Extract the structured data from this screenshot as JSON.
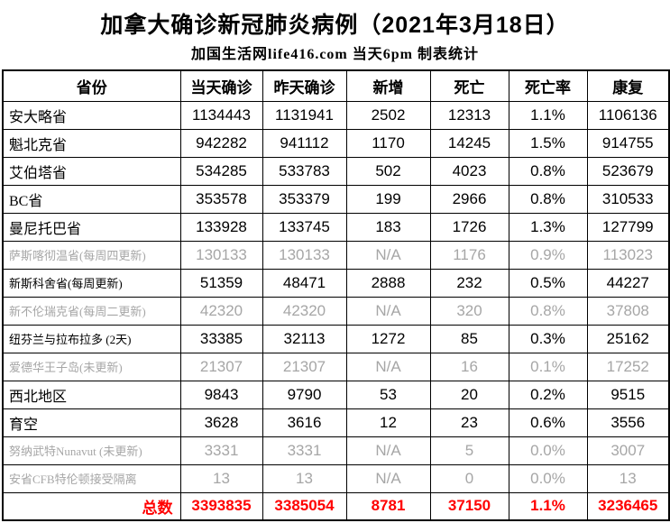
{
  "chart_data": {
    "type": "table",
    "title": "加拿大确诊新冠肺炎病例（2021年3月18日）",
    "subtitle": "加国生活网life416.com 当天6pm 制表统计",
    "columns": [
      "省份",
      "当天确诊",
      "昨天确诊",
      "新增",
      "死亡",
      "死亡率",
      "康复"
    ],
    "rows": [
      {
        "province": "安大略省",
        "values": [
          "1134443",
          "1131941",
          "2502",
          "12313",
          "1.1%",
          "1106136"
        ],
        "muted": false,
        "small_name": false
      },
      {
        "province": "魁北克省",
        "values": [
          "942282",
          "941112",
          "1170",
          "14245",
          "1.5%",
          "914755"
        ],
        "muted": false,
        "small_name": false
      },
      {
        "province": "艾伯塔省",
        "values": [
          "534285",
          "533783",
          "502",
          "4023",
          "0.8%",
          "523679"
        ],
        "muted": false,
        "small_name": false
      },
      {
        "province": "BC省",
        "values": [
          "353578",
          "353379",
          "199",
          "2966",
          "0.8%",
          "310533"
        ],
        "muted": false,
        "small_name": false
      },
      {
        "province": "曼尼托巴省",
        "values": [
          "133928",
          "133745",
          "183",
          "1726",
          "1.3%",
          "127799"
        ],
        "muted": false,
        "small_name": false
      },
      {
        "province": "萨斯喀彻温省(每周四更新)",
        "values": [
          "130133",
          "130133",
          "N/A",
          "1176",
          "0.9%",
          "113023"
        ],
        "muted": true,
        "small_name": true
      },
      {
        "province": "新斯科舍省(每周更新)",
        "values": [
          "51359",
          "48471",
          "2888",
          "232",
          "0.5%",
          "44227"
        ],
        "muted": false,
        "small_name": true
      },
      {
        "province": "新不伦瑞克省(每周二更新)",
        "values": [
          "42320",
          "42320",
          "N/A",
          "320",
          "0.8%",
          "37808"
        ],
        "muted": true,
        "small_name": true
      },
      {
        "province": "纽芬兰与拉布拉多 (2天)",
        "values": [
          "33385",
          "32113",
          "1272",
          "85",
          "0.3%",
          "25162"
        ],
        "muted": false,
        "small_name": true
      },
      {
        "province": "爱德华王子岛(未更新)",
        "values": [
          "21307",
          "21307",
          "N/A",
          "16",
          "0.1%",
          "17252"
        ],
        "muted": true,
        "small_name": true
      },
      {
        "province": "西北地区",
        "values": [
          "9843",
          "9790",
          "53",
          "20",
          "0.2%",
          "9515"
        ],
        "muted": false,
        "small_name": false
      },
      {
        "province": "育空",
        "values": [
          "3628",
          "3616",
          "12",
          "23",
          "0.6%",
          "3556"
        ],
        "muted": false,
        "small_name": false
      },
      {
        "province": "努纳武特Nunavut (未更新)",
        "values": [
          "3331",
          "3331",
          "N/A",
          "5",
          "0.0%",
          "3007"
        ],
        "muted": true,
        "small_name": true
      },
      {
        "province": "安省CFB特伦顿接受隔离",
        "values": [
          "13",
          "13",
          "N/A",
          "0",
          "0.0%",
          "13"
        ],
        "muted": true,
        "small_name": true
      }
    ],
    "totals": {
      "label": "总数",
      "values": [
        "3393835",
        "3385054",
        "8781",
        "37150",
        "1.1%",
        "3236465"
      ]
    },
    "colors": {
      "totals_red": "#ff0000",
      "muted_gray": "#a6a6a6",
      "border_black": "#000000"
    },
    "layout": {
      "grid": "on",
      "header_row": true,
      "totals_row": true
    }
  }
}
